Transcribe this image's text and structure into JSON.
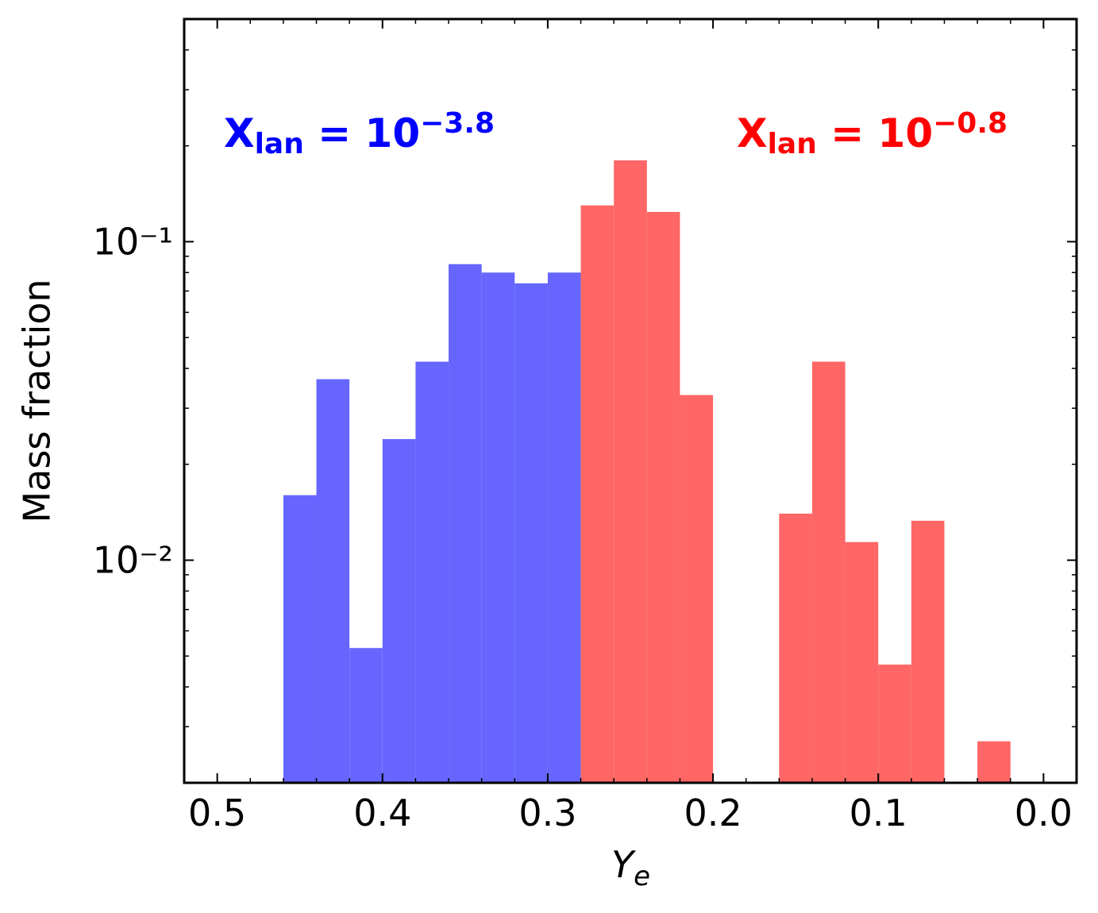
{
  "chart_data": {
    "type": "histogram",
    "xlabel": {
      "text": "Y",
      "subscript": "e"
    },
    "ylabel": "Mass fraction",
    "xlim": [
      0.52,
      -0.02
    ],
    "ylim": [
      0.002,
      0.5
    ],
    "yscale": "log",
    "xticks": [
      0.5,
      0.4,
      0.3,
      0.2,
      0.1,
      {
        "value": 0,
        "label": "0.0"
      }
    ],
    "xminorticks": [
      0.48,
      0.46,
      0.44,
      0.42,
      0.38,
      0.36,
      0.34,
      0.32,
      0.28,
      0.26,
      0.24,
      0.22,
      0.18,
      0.16,
      0.14,
      0.12,
      0.08,
      0.06,
      0.04,
      0.02
    ],
    "yticks": [
      {
        "value": 0.1,
        "label": "10⁻¹"
      },
      {
        "value": 0.01,
        "label": "10⁻²"
      }
    ],
    "yminorticks": [
      0.003,
      0.004,
      0.005,
      0.006,
      0.007,
      0.008,
      0.009,
      0.02,
      0.03,
      0.04,
      0.05,
      0.06,
      0.07,
      0.08,
      0.09,
      0.2,
      0.3,
      0.4
    ],
    "series": [
      {
        "color": "#6666ff",
        "bins": [
          0.46,
          0.44,
          0.42,
          0.4,
          0.38,
          0.36,
          0.34,
          0.32,
          0.3,
          0.28
        ],
        "values": [
          0.016,
          0.037,
          0.0053,
          0.024,
          0.042,
          0.085,
          0.08,
          0.074,
          0.08
        ]
      },
      {
        "color": "#ff6666",
        "bins": [
          0.28,
          0.26,
          0.24,
          0.22,
          0.2,
          0.18,
          0.16,
          0.14,
          0.12,
          0.1,
          0.08,
          0.06,
          0.04,
          0.02
        ],
        "values": [
          0.13,
          0.18,
          0.124,
          0.033,
          null,
          null,
          0.014,
          0.042,
          0.0114,
          0.0047,
          0.0133,
          null,
          0.0027
        ]
      }
    ],
    "annotations": [
      {
        "parts": [
          "X",
          "lan",
          " = 10",
          "−3.8"
        ],
        "color": "#0000ff"
      },
      {
        "parts": [
          "X",
          "lan",
          " = 10",
          "−0.8"
        ],
        "color": "#ff0000"
      }
    ]
  }
}
